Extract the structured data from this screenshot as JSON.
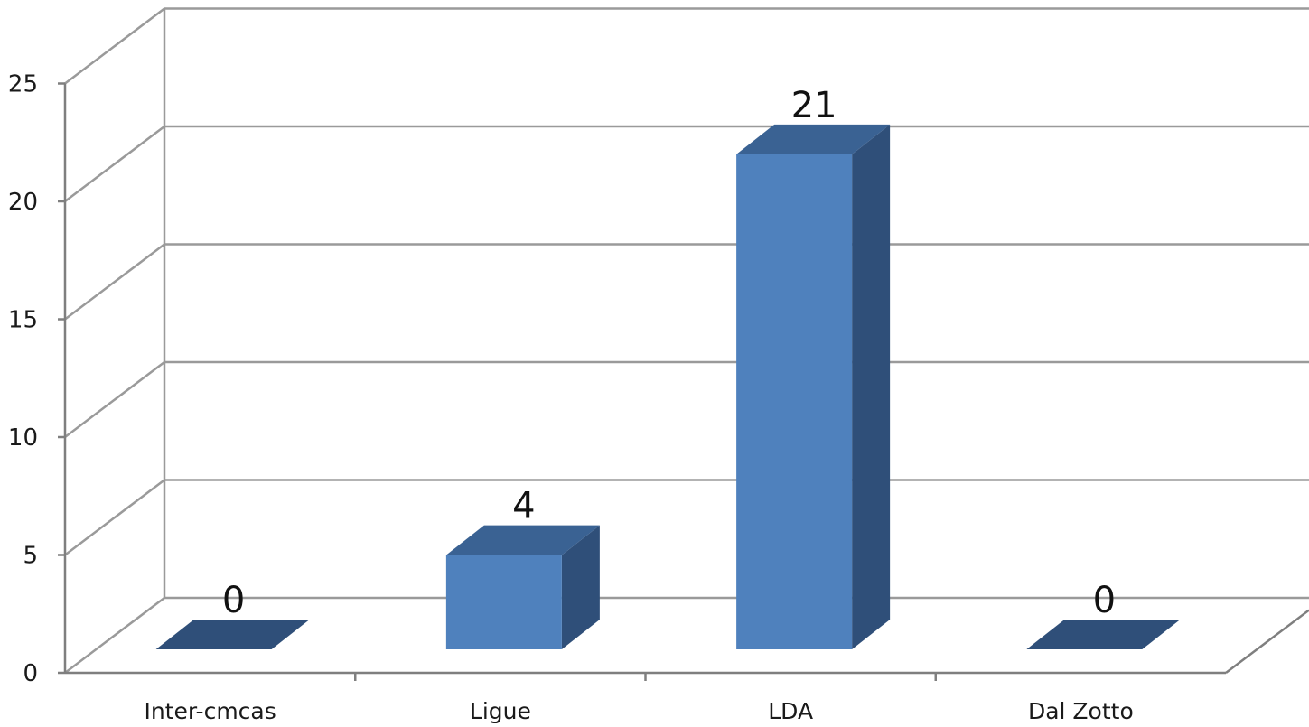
{
  "chart_data": {
    "type": "bar",
    "categories": [
      "Inter-cmcas",
      "Ligue",
      "LDA",
      "Dal Zotto"
    ],
    "values": [
      0,
      4,
      21,
      0
    ],
    "data_labels": [
      "0",
      "4",
      "21",
      "0"
    ],
    "ylim": [
      0,
      25
    ],
    "y_ticks": [
      "0",
      "5",
      "10",
      "15",
      "20",
      "25"
    ],
    "y_tick_values": [
      0,
      5,
      10,
      15,
      20,
      25
    ],
    "grid": true,
    "legend": "none",
    "three_d": true,
    "colors": {
      "bar_front": "#4f81bd",
      "bar_side": "#2f4f79",
      "bar_top": "#3a6293",
      "grid": "#9a9a9a",
      "axis": "#7f7f7f"
    }
  }
}
